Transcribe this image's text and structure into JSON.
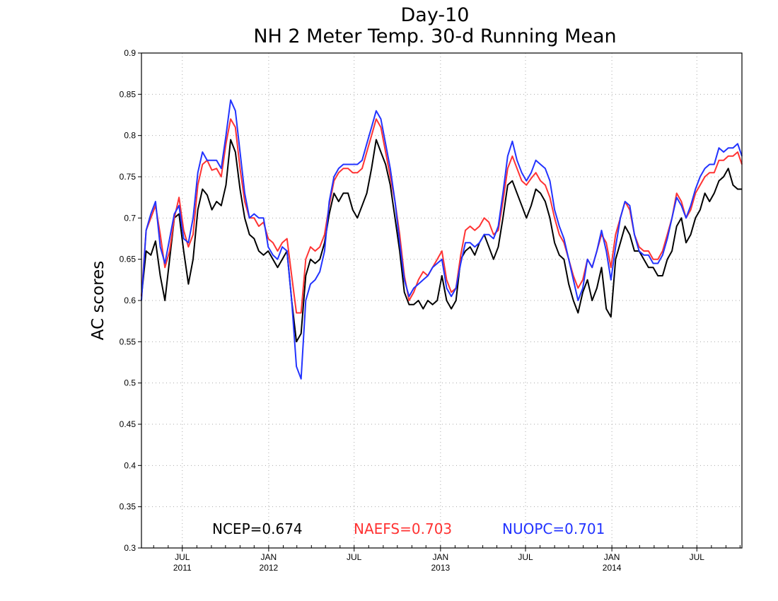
{
  "chart_data": {
    "type": "line",
    "title": "Day-10",
    "subtitle": "NH 2 Meter Temp. 30-d Running Mean",
    "xlabel": "",
    "ylabel": "AC scores",
    "ylim": [
      0.3,
      0.9
    ],
    "xlim": [
      "2011-04-05",
      "2014-10-05"
    ],
    "yticks": [
      "0.3",
      "0.35",
      "0.4",
      "0.45",
      "0.5",
      "0.55",
      "0.6",
      "0.65",
      "0.7",
      "0.75",
      "0.8",
      "0.85",
      "0.9"
    ],
    "xticks": [
      {
        "date": "2011-07-01",
        "label": "JUL",
        "year": "2011"
      },
      {
        "date": "2012-01-01",
        "label": "JAN",
        "year": "2012"
      },
      {
        "date": "2012-07-01",
        "label": "JUL",
        "year": ""
      },
      {
        "date": "2013-01-01",
        "label": "JAN",
        "year": "2013"
      },
      {
        "date": "2013-07-01",
        "label": "JUL",
        "year": ""
      },
      {
        "date": "2014-01-01",
        "label": "JAN",
        "year": "2014"
      },
      {
        "date": "2014-07-01",
        "label": "JUL",
        "year": ""
      }
    ],
    "grid": true,
    "annotations": [
      {
        "text": "NCEP=0.674",
        "color": "#000000"
      },
      {
        "text": "NAEFS=0.703",
        "color": "#ff3333"
      },
      {
        "text": "NUOPC=0.701",
        "color": "#2233ff"
      }
    ],
    "x": [
      "2011-04-05",
      "2011-04-15",
      "2011-04-25",
      "2011-05-05",
      "2011-05-15",
      "2011-05-25",
      "2011-06-04",
      "2011-06-14",
      "2011-06-24",
      "2011-07-04",
      "2011-07-14",
      "2011-07-24",
      "2011-08-03",
      "2011-08-13",
      "2011-08-23",
      "2011-09-02",
      "2011-09-12",
      "2011-09-22",
      "2011-10-02",
      "2011-10-12",
      "2011-10-22",
      "2011-11-01",
      "2011-11-11",
      "2011-11-21",
      "2011-12-01",
      "2011-12-11",
      "2011-12-21",
      "2011-12-31",
      "2012-01-10",
      "2012-01-20",
      "2012-01-30",
      "2012-02-09",
      "2012-02-19",
      "2012-02-29",
      "2012-03-10",
      "2012-03-20",
      "2012-03-30",
      "2012-04-09",
      "2012-04-19",
      "2012-04-29",
      "2012-05-09",
      "2012-05-19",
      "2012-05-29",
      "2012-06-08",
      "2012-06-18",
      "2012-06-28",
      "2012-07-08",
      "2012-07-18",
      "2012-07-28",
      "2012-08-07",
      "2012-08-17",
      "2012-08-27",
      "2012-09-06",
      "2012-09-16",
      "2012-09-26",
      "2012-10-06",
      "2012-10-16",
      "2012-10-26",
      "2012-11-05",
      "2012-11-15",
      "2012-11-25",
      "2012-12-05",
      "2012-12-15",
      "2012-12-25",
      "2013-01-04",
      "2013-01-14",
      "2013-01-24",
      "2013-02-03",
      "2013-02-13",
      "2013-02-23",
      "2013-03-05",
      "2013-03-15",
      "2013-03-25",
      "2013-04-04",
      "2013-04-14",
      "2013-04-24",
      "2013-05-04",
      "2013-05-14",
      "2013-05-24",
      "2013-06-03",
      "2013-06-13",
      "2013-06-23",
      "2013-07-03",
      "2013-07-13",
      "2013-07-23",
      "2013-08-02",
      "2013-08-12",
      "2013-08-22",
      "2013-09-01",
      "2013-09-11",
      "2013-09-21",
      "2013-10-01",
      "2013-10-11",
      "2013-10-21",
      "2013-10-31",
      "2013-11-10",
      "2013-11-20",
      "2013-11-30",
      "2013-12-10",
      "2013-12-20",
      "2013-12-30",
      "2014-01-09",
      "2014-01-19",
      "2014-01-29",
      "2014-02-08",
      "2014-02-18",
      "2014-02-28",
      "2014-03-10",
      "2014-03-20",
      "2014-03-30",
      "2014-04-09",
      "2014-04-19",
      "2014-04-29",
      "2014-05-09",
      "2014-05-19",
      "2014-05-29",
      "2014-06-08",
      "2014-06-18",
      "2014-06-28",
      "2014-07-08",
      "2014-07-18",
      "2014-07-28",
      "2014-08-07",
      "2014-08-17",
      "2014-08-27",
      "2014-09-06",
      "2014-09-16",
      "2014-09-26",
      "2014-10-05"
    ],
    "series": [
      {
        "name": "NCEP",
        "color": "#000000",
        "values": [
          0.605,
          0.66,
          0.655,
          0.672,
          0.63,
          0.6,
          0.65,
          0.7,
          0.705,
          0.66,
          0.62,
          0.65,
          0.71,
          0.735,
          0.728,
          0.71,
          0.72,
          0.715,
          0.74,
          0.795,
          0.78,
          0.735,
          0.7,
          0.68,
          0.675,
          0.66,
          0.655,
          0.66,
          0.65,
          0.64,
          0.65,
          0.66,
          0.6,
          0.55,
          0.56,
          0.63,
          0.65,
          0.645,
          0.65,
          0.67,
          0.705,
          0.73,
          0.72,
          0.73,
          0.73,
          0.71,
          0.7,
          0.715,
          0.73,
          0.76,
          0.795,
          0.78,
          0.765,
          0.74,
          0.7,
          0.66,
          0.61,
          0.595,
          0.595,
          0.6,
          0.59,
          0.6,
          0.595,
          0.6,
          0.63,
          0.6,
          0.59,
          0.6,
          0.65,
          0.66,
          0.665,
          0.655,
          0.67,
          0.68,
          0.665,
          0.65,
          0.665,
          0.7,
          0.74,
          0.745,
          0.73,
          0.715,
          0.7,
          0.715,
          0.735,
          0.73,
          0.72,
          0.7,
          0.67,
          0.655,
          0.65,
          0.62,
          0.6,
          0.585,
          0.61,
          0.625,
          0.6,
          0.615,
          0.64,
          0.59,
          0.58,
          0.65,
          0.67,
          0.69,
          0.68,
          0.66,
          0.66,
          0.65,
          0.64,
          0.64,
          0.63,
          0.63,
          0.65,
          0.66,
          0.69,
          0.7,
          0.67,
          0.68,
          0.7,
          0.71,
          0.73,
          0.72,
          0.73,
          0.745,
          0.75,
          0.76,
          0.74,
          0.735,
          0.735
        ]
      },
      {
        "name": "NAEFS",
        "color": "#ff3333",
        "values": [
          0.605,
          0.685,
          0.7,
          0.715,
          0.68,
          0.64,
          0.66,
          0.7,
          0.725,
          0.685,
          0.665,
          0.68,
          0.74,
          0.765,
          0.77,
          0.758,
          0.76,
          0.75,
          0.79,
          0.82,
          0.81,
          0.76,
          0.72,
          0.7,
          0.7,
          0.69,
          0.695,
          0.675,
          0.67,
          0.66,
          0.67,
          0.675,
          0.63,
          0.585,
          0.585,
          0.65,
          0.665,
          0.66,
          0.665,
          0.68,
          0.715,
          0.745,
          0.755,
          0.76,
          0.76,
          0.755,
          0.755,
          0.76,
          0.78,
          0.8,
          0.82,
          0.81,
          0.78,
          0.75,
          0.72,
          0.68,
          0.63,
          0.6,
          0.61,
          0.625,
          0.635,
          0.63,
          0.64,
          0.65,
          0.66,
          0.625,
          0.61,
          0.615,
          0.655,
          0.685,
          0.69,
          0.685,
          0.69,
          0.7,
          0.695,
          0.68,
          0.685,
          0.72,
          0.76,
          0.775,
          0.76,
          0.745,
          0.74,
          0.748,
          0.755,
          0.745,
          0.74,
          0.725,
          0.7,
          0.68,
          0.67,
          0.65,
          0.63,
          0.615,
          0.625,
          0.65,
          0.64,
          0.66,
          0.68,
          0.67,
          0.64,
          0.68,
          0.7,
          0.72,
          0.71,
          0.68,
          0.665,
          0.66,
          0.66,
          0.65,
          0.65,
          0.66,
          0.68,
          0.7,
          0.73,
          0.72,
          0.7,
          0.71,
          0.73,
          0.74,
          0.75,
          0.755,
          0.755,
          0.77,
          0.77,
          0.775,
          0.775,
          0.78,
          0.765
        ]
      },
      {
        "name": "NUOPC",
        "color": "#2233ff",
        "values": [
          0.6,
          0.685,
          0.705,
          0.72,
          0.665,
          0.645,
          0.675,
          0.705,
          0.715,
          0.675,
          0.67,
          0.7,
          0.755,
          0.78,
          0.77,
          0.77,
          0.77,
          0.76,
          0.8,
          0.843,
          0.83,
          0.78,
          0.73,
          0.7,
          0.705,
          0.7,
          0.7,
          0.665,
          0.655,
          0.65,
          0.665,
          0.66,
          0.6,
          0.52,
          0.505,
          0.6,
          0.62,
          0.625,
          0.635,
          0.66,
          0.72,
          0.75,
          0.76,
          0.765,
          0.765,
          0.765,
          0.765,
          0.77,
          0.79,
          0.81,
          0.83,
          0.82,
          0.79,
          0.76,
          0.72,
          0.67,
          0.625,
          0.605,
          0.615,
          0.62,
          0.625,
          0.63,
          0.64,
          0.645,
          0.65,
          0.615,
          0.605,
          0.615,
          0.645,
          0.67,
          0.67,
          0.665,
          0.67,
          0.68,
          0.68,
          0.675,
          0.69,
          0.73,
          0.775,
          0.793,
          0.77,
          0.755,
          0.745,
          0.755,
          0.77,
          0.765,
          0.76,
          0.745,
          0.71,
          0.69,
          0.675,
          0.65,
          0.625,
          0.6,
          0.615,
          0.65,
          0.64,
          0.66,
          0.685,
          0.66,
          0.625,
          0.665,
          0.7,
          0.72,
          0.715,
          0.68,
          0.66,
          0.655,
          0.655,
          0.645,
          0.645,
          0.655,
          0.675,
          0.7,
          0.725,
          0.715,
          0.7,
          0.715,
          0.735,
          0.75,
          0.76,
          0.765,
          0.765,
          0.785,
          0.78,
          0.785,
          0.785,
          0.79,
          0.775
        ]
      }
    ]
  }
}
